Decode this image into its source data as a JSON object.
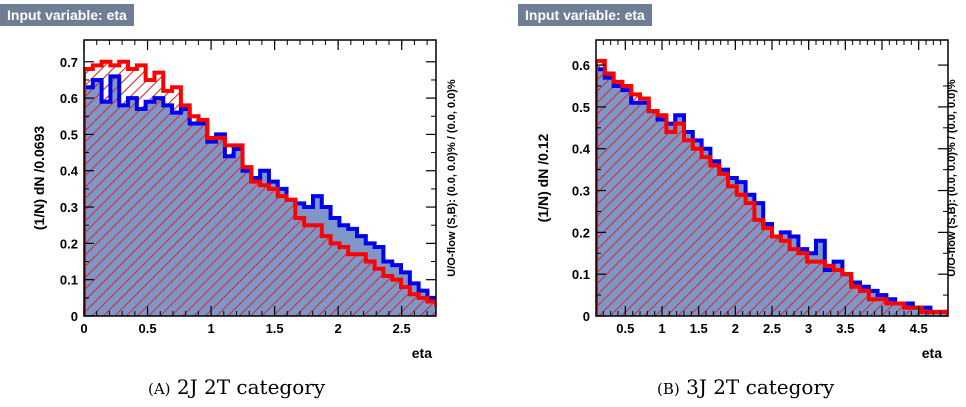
{
  "panels": [
    {
      "tag": "Input variable: eta",
      "caption_prefix": "(A)",
      "caption_text": "2J 2T category",
      "side_label": "U/O-flow (S,B): (0.0, 0.0)% / (0.0, 0.0)%"
    },
    {
      "tag": "Input variable: eta",
      "caption_prefix": "(B)",
      "caption_text": "3J 2T category",
      "side_label": "U/O-flow (S,B): (0.0, 0.0)% / (0.0, 0.0)%"
    }
  ],
  "colors": {
    "tag_bg": "#6f7e95",
    "signal_line": "#0000ee",
    "signal_fill": "#7f96c8",
    "background_line": "#ff0000",
    "background_hatch": "#d03030"
  },
  "chart_data": [
    {
      "type": "histogram",
      "xlabel": "eta",
      "ylabel": "(1/N) dN /0.0693",
      "xlim": [
        0,
        2.77
      ],
      "ylim": [
        0,
        0.76
      ],
      "xticks": [
        0,
        0.5,
        1,
        1.5,
        2,
        2.5
      ],
      "xtick_labels": [
        "0",
        "0.5",
        "1",
        "1.5",
        "2",
        "2.5"
      ],
      "yticks": [
        0,
        0.1,
        0.2,
        0.3,
        0.4,
        0.5,
        0.6,
        0.7
      ],
      "ytick_labels": [
        "0",
        "0.1",
        "0.2",
        "0.3",
        "0.4",
        "0.5",
        "0.6",
        "0.7"
      ],
      "bin_edges_start": 0.0,
      "bin_width": 0.0693,
      "series": [
        {
          "role": "signal",
          "values": [
            0.63,
            0.65,
            0.59,
            0.66,
            0.58,
            0.6,
            0.57,
            0.59,
            0.6,
            0.58,
            0.56,
            0.57,
            0.53,
            0.53,
            0.48,
            0.5,
            0.44,
            0.46,
            0.4,
            0.38,
            0.4,
            0.37,
            0.35,
            0.32,
            0.31,
            0.3,
            0.33,
            0.3,
            0.27,
            0.25,
            0.24,
            0.22,
            0.2,
            0.19,
            0.15,
            0.14,
            0.12,
            0.09,
            0.07,
            0.05,
            0.04
          ]
        },
        {
          "role": "background",
          "values": [
            0.68,
            0.69,
            0.7,
            0.69,
            0.7,
            0.68,
            0.69,
            0.65,
            0.67,
            0.62,
            0.63,
            0.58,
            0.55,
            0.54,
            0.49,
            0.49,
            0.47,
            0.47,
            0.41,
            0.37,
            0.36,
            0.35,
            0.33,
            0.32,
            0.27,
            0.25,
            0.25,
            0.22,
            0.2,
            0.19,
            0.17,
            0.17,
            0.15,
            0.13,
            0.11,
            0.1,
            0.08,
            0.06,
            0.05,
            0.04,
            0.03
          ]
        }
      ]
    },
    {
      "type": "histogram",
      "xlabel": "eta",
      "ylabel": "(1/N) dN /0.12",
      "xlim": [
        0.1,
        4.9
      ],
      "ylim": [
        0,
        0.66
      ],
      "xticks": [
        0.5,
        1,
        1.5,
        2,
        2.5,
        3,
        3.5,
        4,
        4.5
      ],
      "xtick_labels": [
        "0.5",
        "1",
        "1.5",
        "2",
        "2.5",
        "3",
        "3.5",
        "4",
        "4.5"
      ],
      "yticks": [
        0,
        0.1,
        0.2,
        0.3,
        0.4,
        0.5,
        0.6
      ],
      "ytick_labels": [
        "0",
        "0.1",
        "0.2",
        "0.3",
        "0.4",
        "0.5",
        "0.6"
      ],
      "bin_edges_start": 0.1,
      "bin_width": 0.12,
      "series": [
        {
          "role": "signal",
          "values": [
            0.59,
            0.57,
            0.55,
            0.54,
            0.51,
            0.51,
            0.49,
            0.47,
            0.46,
            0.48,
            0.44,
            0.42,
            0.4,
            0.37,
            0.35,
            0.33,
            0.32,
            0.29,
            0.27,
            0.22,
            0.19,
            0.2,
            0.19,
            0.16,
            0.15,
            0.18,
            0.11,
            0.13,
            0.1,
            0.08,
            0.07,
            0.06,
            0.05,
            0.04,
            0.03,
            0.03,
            0.02,
            0.02,
            0.01,
            0.01
          ]
        },
        {
          "role": "background",
          "values": [
            0.61,
            0.58,
            0.56,
            0.55,
            0.53,
            0.52,
            0.49,
            0.48,
            0.44,
            0.46,
            0.42,
            0.4,
            0.38,
            0.36,
            0.34,
            0.31,
            0.29,
            0.27,
            0.23,
            0.21,
            0.19,
            0.18,
            0.16,
            0.15,
            0.13,
            0.13,
            0.12,
            0.11,
            0.1,
            0.07,
            0.06,
            0.04,
            0.04,
            0.03,
            0.03,
            0.02,
            0.02,
            0.01,
            0.01,
            0.01
          ]
        }
      ]
    }
  ]
}
